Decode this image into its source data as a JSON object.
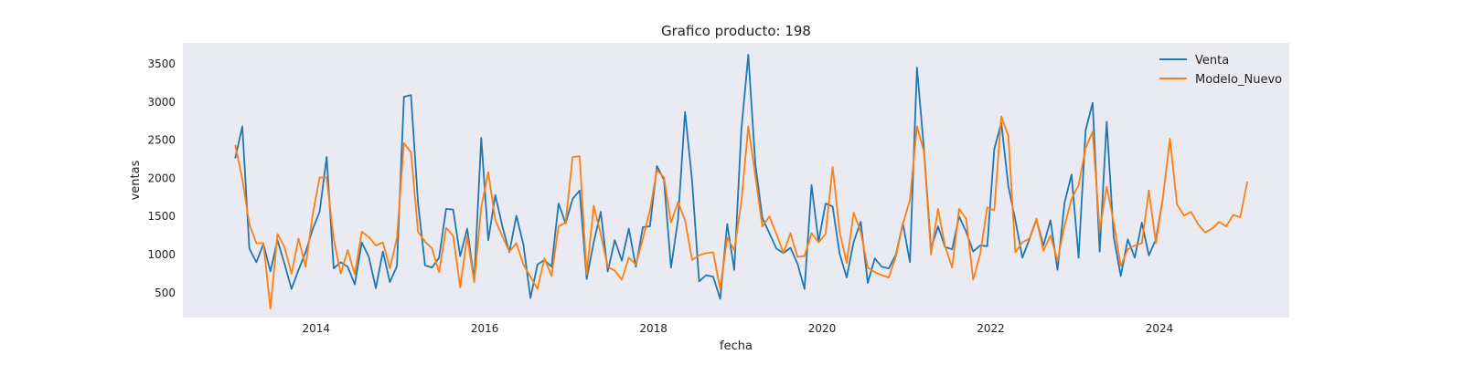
{
  "chart_data": {
    "type": "line",
    "title": "Grafico producto: 198",
    "xlabel": "fecha",
    "ylabel": "ventas",
    "xlim": [
      2012.42,
      2025.54
    ],
    "ylim": [
      175,
      3775
    ],
    "x_ticks": [
      2014,
      2016,
      2018,
      2020,
      2022,
      2024
    ],
    "y_ticks": [
      500,
      1000,
      1500,
      2000,
      2500,
      3000,
      3500
    ],
    "grid": false,
    "background": "#eaeaf2",
    "legend": "top-right",
    "x_start": "2013-01",
    "x_step": "monthly",
    "series": [
      {
        "name": "Venta",
        "color": "#1f77b4",
        "values": [
          2270,
          2680,
          1080,
          900,
          1140,
          780,
          1190,
          880,
          550,
          800,
          1030,
          1330,
          1560,
          2280,
          820,
          900,
          840,
          610,
          1160,
          970,
          560,
          1040,
          640,
          850,
          3070,
          3090,
          1680,
          860,
          830,
          960,
          1600,
          1590,
          980,
          1340,
          660,
          2530,
          1190,
          1780,
          1370,
          1030,
          1510,
          1130,
          430,
          870,
          930,
          840,
          1670,
          1410,
          1730,
          1840,
          680,
          1160,
          1560,
          780,
          1190,
          920,
          1340,
          840,
          1360,
          1370,
          2160,
          1980,
          830,
          1460,
          2870,
          1970,
          650,
          730,
          710,
          420,
          1400,
          800,
          2620,
          3620,
          2190,
          1480,
          1280,
          1080,
          1020,
          1090,
          880,
          550,
          1910,
          1170,
          1670,
          1630,
          1010,
          700,
          1170,
          1430,
          630,
          950,
          840,
          820,
          1000,
          1410,
          900,
          3450,
          2380,
          1080,
          1370,
          1100,
          1070,
          1500,
          1300,
          1040,
          1120,
          1110,
          2380,
          2730,
          1900,
          1450,
          960,
          1200,
          1460,
          1120,
          1450,
          800,
          1680,
          2050,
          960,
          2630,
          2990,
          1040,
          2740,
          1230,
          720,
          1200,
          960,
          1420,
          990,
          1200,
          1740
        ]
      },
      {
        "name": "Modelo_Nuevo",
        "color": "#ff7f0e",
        "values": [
          2430,
          1990,
          1400,
          1150,
          1150,
          290,
          1270,
          1100,
          750,
          1210,
          840,
          1520,
          2010,
          2010,
          1210,
          750,
          1060,
          740,
          1300,
          1230,
          1120,
          1160,
          820,
          1220,
          2460,
          2340,
          1300,
          1170,
          1080,
          770,
          1350,
          1250,
          570,
          1240,
          640,
          1620,
          2080,
          1450,
          1240,
          1040,
          1150,
          870,
          710,
          550,
          950,
          720,
          1370,
          1420,
          2280,
          2290,
          740,
          1640,
          1270,
          840,
          790,
          670,
          960,
          870,
          1210,
          1580,
          2110,
          2010,
          1420,
          1690,
          1450,
          930,
          990,
          1020,
          1030,
          550,
          1220,
          1060,
          1680,
          2680,
          2030,
          1370,
          1500,
          1270,
          1020,
          1280,
          970,
          980,
          1280,
          1160,
          1270,
          2150,
          1300,
          890,
          1550,
          1300,
          830,
          770,
          730,
          700,
          980,
          1400,
          1720,
          2680,
          2350,
          1000,
          1600,
          1110,
          830,
          1600,
          1470,
          670,
          1010,
          1620,
          1580,
          2810,
          2560,
          1030,
          1160,
          1210,
          1470,
          1050,
          1250,
          920,
          1380,
          1730,
          1910,
          2400,
          2610,
          1320,
          1890,
          1420,
          850,
          1070,
          1120,
          1150,
          1840,
          1150,
          1750,
          2520,
          1660,
          1510,
          1560,
          1400,
          1290,
          1340,
          1430,
          1370,
          1520,
          1490,
          1950
        ]
      }
    ]
  }
}
